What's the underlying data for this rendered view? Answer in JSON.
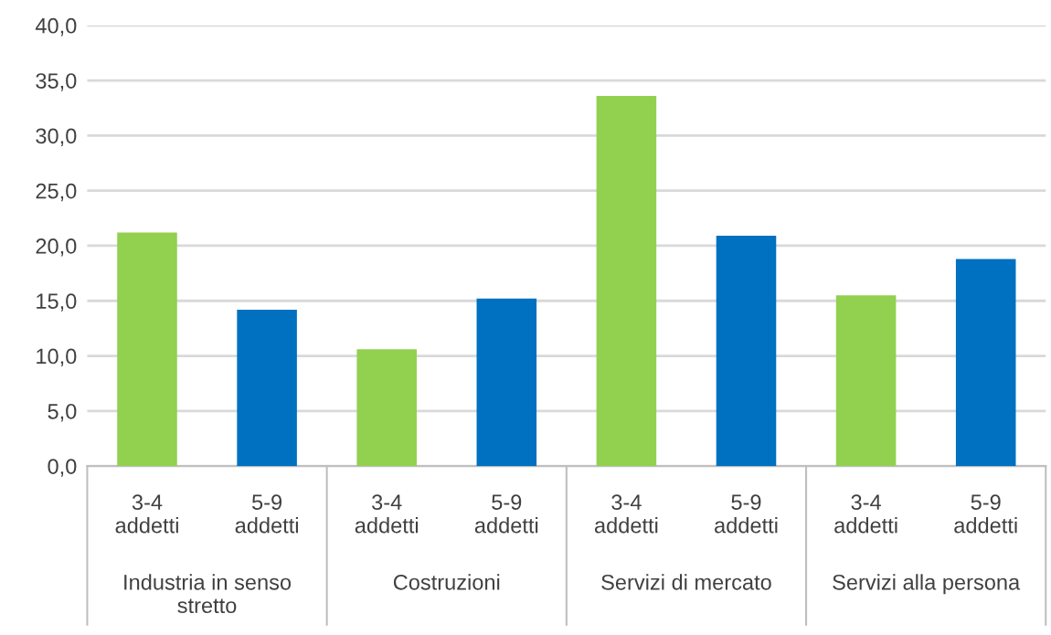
{
  "chart_data": {
    "type": "bar",
    "categories": [
      "3-4\naddetti",
      "5-9\naddetti",
      "3-4\naddetti",
      "5-9\naddetti",
      "3-4\naddetti",
      "5-9\naddetti",
      "3-4\naddetti",
      "5-9\naddetti"
    ],
    "values": [
      21.2,
      14.2,
      10.6,
      15.2,
      33.6,
      20.9,
      15.5,
      18.8
    ],
    "colors": [
      "#92d050",
      "#0070c0",
      "#92d050",
      "#0070c0",
      "#92d050",
      "#0070c0",
      "#92d050",
      "#0070c0"
    ],
    "annotations": [
      "Industria in senso\nstretto",
      "Costruzioni",
      "Servizi di mercato",
      "Servizi alla persona"
    ],
    "ylim": [
      0,
      40
    ],
    "yticks": [
      {
        "value": 0,
        "label": "0,0"
      },
      {
        "value": 5,
        "label": "5,0"
      },
      {
        "value": 10,
        "label": "10,0"
      },
      {
        "value": 15,
        "label": "15,0"
      },
      {
        "value": 20,
        "label": "20,0"
      },
      {
        "value": 25,
        "label": "25,0"
      },
      {
        "value": 30,
        "label": "30,0"
      },
      {
        "value": 35,
        "label": "35,0"
      },
      {
        "value": 40,
        "label": "40,0"
      }
    ],
    "grid": "y"
  }
}
